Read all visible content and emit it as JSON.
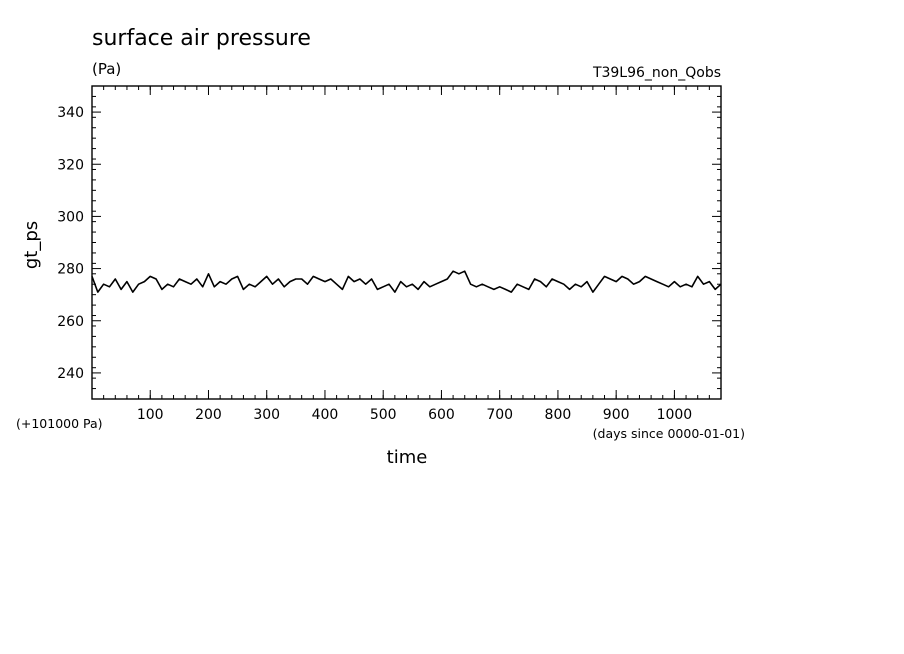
{
  "chart_data": {
    "type": "line",
    "title": "surface air pressure",
    "unit": "(Pa)",
    "run_label": "T39L96_non_Qobs",
    "xlabel": "time",
    "x_unit": "(days since 0000-01-01)",
    "ylabel": "gt_ps",
    "y_offset_note": "(+101000 Pa)",
    "xlim": [
      0,
      1080
    ],
    "ylim": [
      230,
      350
    ],
    "x_ticks": [
      100,
      200,
      300,
      400,
      500,
      600,
      700,
      800,
      900,
      1000
    ],
    "y_ticks": [
      240,
      260,
      280,
      300,
      320,
      340
    ],
    "grid": false,
    "series": [
      {
        "x": [
          0,
          10,
          20,
          30,
          40,
          50,
          60,
          70,
          80,
          90,
          100,
          110,
          120,
          130,
          140,
          150,
          160,
          170,
          180,
          190,
          200,
          210,
          220,
          230,
          240,
          250,
          260,
          270,
          280,
          290,
          300,
          310,
          320,
          330,
          340,
          350,
          360,
          370,
          380,
          390,
          400,
          410,
          420,
          430,
          440,
          450,
          460,
          470,
          480,
          490,
          500,
          510,
          520,
          530,
          540,
          550,
          560,
          570,
          580,
          590,
          600,
          610,
          620,
          630,
          640,
          650,
          660,
          670,
          680,
          690,
          700,
          710,
          720,
          730,
          740,
          750,
          760,
          770,
          780,
          790,
          800,
          810,
          820,
          830,
          840,
          850,
          860,
          870,
          880,
          890,
          900,
          910,
          920,
          930,
          940,
          950,
          960,
          970,
          980,
          990,
          1000,
          1010,
          1020,
          1030,
          1040,
          1050,
          1060,
          1070,
          1080
        ],
        "y": [
          277,
          271,
          274,
          273,
          276,
          272,
          275,
          271,
          274,
          275,
          277,
          276,
          272,
          274,
          273,
          276,
          275,
          274,
          276,
          273,
          278,
          273,
          275,
          274,
          276,
          277,
          272,
          274,
          273,
          275,
          277,
          274,
          276,
          273,
          275,
          276,
          276,
          274,
          277,
          276,
          275,
          276,
          274,
          272,
          277,
          275,
          276,
          274,
          276,
          272,
          273,
          274,
          271,
          275,
          273,
          274,
          272,
          275,
          273,
          274,
          275,
          276,
          279,
          278,
          279,
          274,
          273,
          274,
          273,
          272,
          273,
          272,
          271,
          274,
          273,
          272,
          276,
          275,
          273,
          276,
          275,
          274,
          272,
          274,
          273,
          275,
          271,
          274,
          277,
          276,
          275,
          277,
          276,
          274,
          275,
          277,
          276,
          275,
          274,
          273,
          275,
          273,
          274,
          273,
          277,
          274,
          275,
          272,
          274
        ]
      }
    ]
  }
}
